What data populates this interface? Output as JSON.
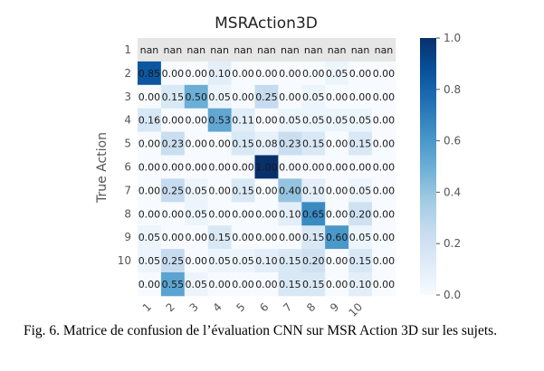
{
  "chart_data": {
    "type": "heatmap",
    "title": "MSRAction3D",
    "ylabel": "True Action",
    "xlabel": "",
    "row_labels": [
      "1",
      "2",
      "3",
      "4",
      "5",
      "6",
      "7",
      "8",
      "9",
      "10",
      ""
    ],
    "col_labels": [
      "1",
      "2",
      "3",
      "4",
      "5",
      "6",
      "7",
      "8",
      "9",
      "10",
      ""
    ],
    "values": [
      [
        null,
        null,
        null,
        null,
        null,
        null,
        null,
        null,
        null,
        null,
        null
      ],
      [
        0.85,
        0.0,
        0.0,
        0.1,
        0.0,
        0.0,
        0.0,
        0.0,
        0.05,
        0.0,
        0.0
      ],
      [
        0.0,
        0.15,
        0.5,
        0.05,
        0.0,
        0.25,
        0.0,
        0.05,
        0.0,
        0.0,
        0.0
      ],
      [
        0.16,
        0.0,
        0.0,
        0.53,
        0.11,
        0.0,
        0.05,
        0.05,
        0.05,
        0.05,
        0.0
      ],
      [
        0.0,
        0.23,
        0.0,
        0.0,
        0.15,
        0.08,
        0.23,
        0.15,
        0.0,
        0.15,
        0.0
      ],
      [
        0.0,
        0.0,
        0.0,
        0.0,
        0.0,
        1.0,
        0.0,
        0.0,
        0.0,
        0.0,
        0.0
      ],
      [
        0.0,
        0.25,
        0.05,
        0.0,
        0.15,
        0.0,
        0.4,
        0.1,
        0.0,
        0.05,
        0.0
      ],
      [
        0.0,
        0.0,
        0.05,
        0.0,
        0.0,
        0.0,
        0.1,
        0.65,
        0.0,
        0.2,
        0.0
      ],
      [
        0.05,
        0.0,
        0.0,
        0.15,
        0.0,
        0.0,
        0.0,
        0.15,
        0.6,
        0.05,
        0.0
      ],
      [
        0.05,
        0.25,
        0.0,
        0.05,
        0.05,
        0.1,
        0.15,
        0.2,
        0.0,
        0.15,
        0.0
      ],
      [
        0.0,
        0.55,
        0.05,
        0.0,
        0.0,
        0.0,
        0.15,
        0.15,
        0.0,
        0.1,
        0.0
      ]
    ],
    "cell_text": [
      [
        "nan",
        "nan",
        "nan",
        "nan",
        "nan",
        "nan",
        "nan",
        "nan",
        "nan",
        "nan",
        "nan"
      ],
      [
        "0.85",
        "0.00",
        "0.00",
        "0.10",
        "0.00",
        "0.00",
        "0.00",
        "0.00",
        "0.05",
        "0.00",
        "0.00"
      ],
      [
        "0.00",
        "0.15",
        "0.50",
        "0.05",
        "0.00",
        "0.25",
        "0.00",
        "0.05",
        "0.00",
        "0.00",
        "0.00"
      ],
      [
        "0.16",
        "0.00",
        "0.00",
        "0.53",
        "0.11",
        "0.00",
        "0.05",
        "0.05",
        "0.05",
        "0.05",
        "0.00"
      ],
      [
        "0.00",
        "0.23",
        "0.00",
        "0.00",
        "0.15",
        "0.08",
        "0.23",
        "0.15",
        "0.00",
        "0.15",
        "0.00"
      ],
      [
        "0.00",
        "0.00",
        "0.00",
        "0.00",
        "0.00",
        "1.00",
        "0.00",
        "0.00",
        "0.00",
        "0.00",
        "0.00"
      ],
      [
        "0.00",
        "0.25",
        "0.05",
        "0.00",
        "0.15",
        "0.00",
        "0.40",
        "0.10",
        "0.00",
        "0.05",
        "0.00"
      ],
      [
        "0.00",
        "0.00",
        "0.05",
        "0.00",
        "0.00",
        "0.00",
        "0.10",
        "0.65",
        "0.00",
        "0.20",
        "0.00"
      ],
      [
        "0.05",
        "0.00",
        "0.00",
        "0.15",
        "0.00",
        "0.00",
        "0.00",
        "0.15",
        "0.60",
        "0.05",
        "0.00"
      ],
      [
        "0.05",
        "0.25",
        "0.00",
        "0.05",
        "0.05",
        "0.10",
        "0.15",
        "0.20",
        "0.00",
        "0.15",
        "0.00"
      ],
      [
        "0.00",
        "0.55",
        "0.05",
        "0.00",
        "0.00",
        "0.00",
        "0.15",
        "0.15",
        "0.00",
        "0.10",
        "0.00"
      ]
    ],
    "colorbar": {
      "min": 0.0,
      "max": 1.0,
      "ticks": [
        "0.0",
        "0.2",
        "0.4",
        "0.6",
        "0.8",
        "1.0"
      ],
      "colormap": "Blues"
    },
    "nan_color": "#e6e6e6",
    "grid": false
  },
  "caption": "Fig. 6. Matrice de confusion de l’évaluation CNN sur MSR Action 3D sur les sujets."
}
